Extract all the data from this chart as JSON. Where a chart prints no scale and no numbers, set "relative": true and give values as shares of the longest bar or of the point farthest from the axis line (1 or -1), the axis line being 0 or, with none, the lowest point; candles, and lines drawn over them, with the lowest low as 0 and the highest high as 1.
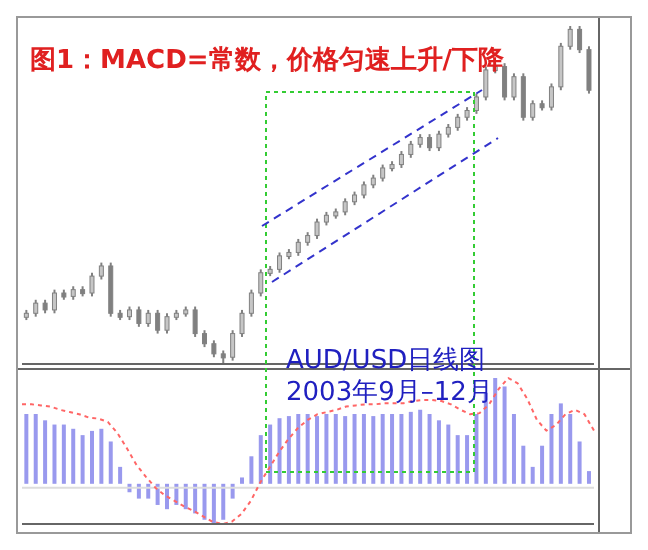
{
  "chart_data": [
    {
      "type": "candlestick",
      "title": "图1：MACD=常数，价格匀速上升/下降",
      "annotations": [
        "AUD/USD日线图",
        "2003年9月–12月"
      ],
      "relative": true,
      "tick_labels": false,
      "color": "#808080",
      "categories": [
        null,
        null,
        null,
        null,
        null,
        null,
        null,
        null,
        null,
        null,
        null,
        null,
        null,
        null,
        null,
        null,
        null,
        null,
        null,
        null,
        null,
        null,
        null,
        null,
        null,
        null,
        null,
        null,
        null,
        null,
        null,
        null,
        null,
        null,
        null,
        null,
        null,
        null,
        null,
        null,
        null,
        null,
        null,
        null,
        null,
        null,
        null,
        null,
        null,
        null,
        null,
        null,
        null,
        null,
        null,
        null,
        null,
        null,
        null,
        null,
        null
      ],
      "ohlc": [
        [
          0.14,
          0.16,
          0.13,
          0.15
        ],
        [
          0.15,
          0.19,
          0.14,
          0.18
        ],
        [
          0.18,
          0.19,
          0.15,
          0.16
        ],
        [
          0.16,
          0.22,
          0.15,
          0.21
        ],
        [
          0.21,
          0.22,
          0.19,
          0.2
        ],
        [
          0.2,
          0.23,
          0.19,
          0.22
        ],
        [
          0.22,
          0.23,
          0.2,
          0.21
        ],
        [
          0.21,
          0.27,
          0.2,
          0.26
        ],
        [
          0.26,
          0.3,
          0.25,
          0.29
        ],
        [
          0.29,
          0.3,
          0.14,
          0.15
        ],
        [
          0.15,
          0.16,
          0.13,
          0.14
        ],
        [
          0.14,
          0.17,
          0.13,
          0.16
        ],
        [
          0.16,
          0.17,
          0.11,
          0.12
        ],
        [
          0.12,
          0.16,
          0.11,
          0.15
        ],
        [
          0.15,
          0.16,
          0.09,
          0.1
        ],
        [
          0.1,
          0.15,
          0.09,
          0.14
        ],
        [
          0.14,
          0.16,
          0.13,
          0.15
        ],
        [
          0.15,
          0.17,
          0.14,
          0.16
        ],
        [
          0.16,
          0.17,
          0.08,
          0.09
        ],
        [
          0.09,
          0.1,
          0.05,
          0.06
        ],
        [
          0.06,
          0.07,
          0.02,
          0.03
        ],
        [
          0.03,
          0.04,
          0.0,
          0.02
        ],
        [
          0.02,
          0.1,
          0.01,
          0.09
        ],
        [
          0.09,
          0.16,
          0.08,
          0.15
        ],
        [
          0.15,
          0.22,
          0.14,
          0.21
        ],
        [
          0.21,
          0.28,
          0.2,
          0.27
        ],
        [
          0.27,
          0.29,
          0.26,
          0.28
        ],
        [
          0.28,
          0.33,
          0.27,
          0.32
        ],
        [
          0.32,
          0.34,
          0.31,
          0.33
        ],
        [
          0.33,
          0.37,
          0.32,
          0.36
        ],
        [
          0.36,
          0.39,
          0.35,
          0.38
        ],
        [
          0.38,
          0.43,
          0.37,
          0.42
        ],
        [
          0.42,
          0.45,
          0.41,
          0.44
        ],
        [
          0.44,
          0.46,
          0.43,
          0.45
        ],
        [
          0.45,
          0.49,
          0.44,
          0.48
        ],
        [
          0.48,
          0.51,
          0.47,
          0.5
        ],
        [
          0.5,
          0.54,
          0.49,
          0.53
        ],
        [
          0.53,
          0.56,
          0.52,
          0.55
        ],
        [
          0.55,
          0.59,
          0.54,
          0.58
        ],
        [
          0.58,
          0.6,
          0.57,
          0.59
        ],
        [
          0.59,
          0.63,
          0.58,
          0.62
        ],
        [
          0.62,
          0.66,
          0.61,
          0.65
        ],
        [
          0.65,
          0.68,
          0.64,
          0.67
        ],
        [
          0.67,
          0.68,
          0.63,
          0.64
        ],
        [
          0.64,
          0.69,
          0.63,
          0.68
        ],
        [
          0.68,
          0.71,
          0.67,
          0.7
        ],
        [
          0.7,
          0.74,
          0.69,
          0.73
        ],
        [
          0.73,
          0.76,
          0.72,
          0.75
        ],
        [
          0.75,
          0.8,
          0.74,
          0.79
        ],
        [
          0.79,
          0.88,
          0.78,
          0.87
        ],
        [
          0.87,
          0.89,
          0.86,
          0.88
        ],
        [
          0.88,
          0.89,
          0.78,
          0.79
        ],
        [
          0.79,
          0.86,
          0.78,
          0.85
        ],
        [
          0.85,
          0.86,
          0.72,
          0.73
        ],
        [
          0.73,
          0.78,
          0.72,
          0.77
        ],
        [
          0.77,
          0.78,
          0.75,
          0.76
        ],
        [
          0.76,
          0.83,
          0.75,
          0.82
        ],
        [
          0.82,
          0.95,
          0.81,
          0.94
        ],
        [
          0.94,
          1.0,
          0.93,
          0.99
        ],
        [
          0.99,
          1.0,
          0.92,
          0.93
        ],
        [
          0.93,
          0.94,
          0.8,
          0.81
        ]
      ],
      "grid": false
    },
    {
      "type": "bar",
      "relative": true,
      "tick_labels": false,
      "categories": [
        null,
        null,
        null,
        null,
        null,
        null,
        null,
        null,
        null,
        null,
        null,
        null,
        null,
        null,
        null,
        null,
        null,
        null,
        null,
        null,
        null,
        null,
        null,
        null,
        null,
        null,
        null,
        null,
        null,
        null,
        null,
        null,
        null,
        null,
        null,
        null,
        null,
        null,
        null,
        null,
        null,
        null,
        null,
        null,
        null,
        null,
        null,
        null,
        null,
        null,
        null,
        null,
        null,
        null,
        null,
        null,
        null,
        null,
        null,
        null,
        null
      ],
      "series": [
        {
          "color": "#9999ee",
          "values": [
            0.66,
            0.66,
            0.6,
            0.56,
            0.56,
            0.52,
            0.46,
            0.5,
            0.52,
            0.4,
            0.16,
            -0.08,
            -0.14,
            -0.14,
            -0.2,
            -0.24,
            -0.2,
            -0.24,
            -0.28,
            -0.34,
            -0.38,
            -0.34,
            -0.14,
            0.06,
            0.26,
            0.46,
            0.56,
            0.62,
            0.64,
            0.66,
            0.66,
            0.64,
            0.66,
            0.66,
            0.64,
            0.66,
            0.66,
            0.64,
            0.66,
            0.66,
            0.66,
            0.68,
            0.7,
            0.66,
            0.6,
            0.56,
            0.46,
            0.46,
            0.66,
            0.86,
            1,
            0.92,
            0.66,
            0.36,
            0.16,
            0.36,
            0.66,
            0.76,
            0.66,
            0.4,
            0.12
          ]
        }
      ]
    },
    {
      "type": "line",
      "relative": true,
      "tick_labels": false,
      "categories": [
        null,
        null,
        null,
        null,
        null,
        null,
        null,
        null,
        null,
        null,
        null,
        null,
        null,
        null,
        null,
        null,
        null,
        null,
        null,
        null,
        null,
        null,
        null,
        null,
        null,
        null,
        null,
        null,
        null,
        null,
        null,
        null,
        null,
        null,
        null,
        null,
        null,
        null,
        null,
        null,
        null,
        null,
        null,
        null,
        null,
        null,
        null,
        null,
        null,
        null,
        null,
        null,
        null,
        null,
        null,
        null,
        null,
        null,
        null,
        null,
        null
      ],
      "series": [
        {
          "color": "#ff6666",
          "line_style": "dotted",
          "values": [
            0.76,
            0.76,
            0.75,
            0.74,
            0.71,
            0.69,
            0.67,
            0.64,
            0.63,
            0.6,
            0.5,
            0.36,
            0.21,
            0.1,
            0,
            -0.07,
            -0.12,
            -0.17,
            -0.21,
            -0.26,
            -0.31,
            -0.33,
            -0.31,
            -0.24,
            -0.12,
            0.05,
            0.19,
            0.33,
            0.45,
            0.55,
            0.62,
            0.67,
            0.69,
            0.71,
            0.74,
            0.75,
            0.76,
            0.76,
            0.77,
            0.77,
            0.77,
            0.79,
            0.8,
            0.8,
            0.79,
            0.76,
            0.71,
            0.67,
            0.68,
            0.76,
            0.9,
            1,
            0.95,
            0.81,
            0.62,
            0.52,
            0.57,
            0.67,
            0.71,
            0.67,
            0.52
          ]
        }
      ]
    }
  ]
}
